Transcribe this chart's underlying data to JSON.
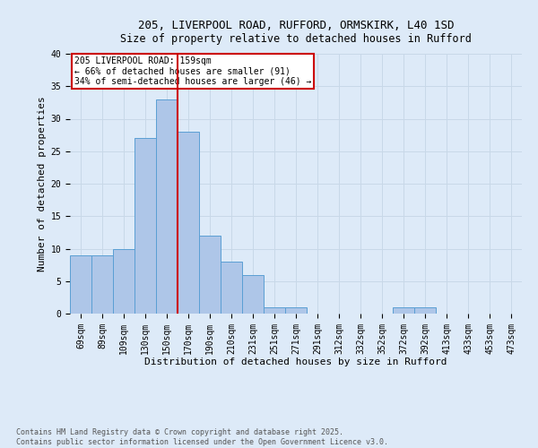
{
  "title_line1": "205, LIVERPOOL ROAD, RUFFORD, ORMSKIRK, L40 1SD",
  "title_line2": "Size of property relative to detached houses in Rufford",
  "xlabel": "Distribution of detached houses by size in Rufford",
  "ylabel": "Number of detached properties",
  "bin_labels": [
    "69sqm",
    "89sqm",
    "109sqm",
    "130sqm",
    "150sqm",
    "170sqm",
    "190sqm",
    "210sqm",
    "231sqm",
    "251sqm",
    "271sqm",
    "291sqm",
    "312sqm",
    "332sqm",
    "352sqm",
    "372sqm",
    "392sqm",
    "413sqm",
    "433sqm",
    "453sqm",
    "473sqm"
  ],
  "values": [
    9,
    9,
    10,
    27,
    33,
    28,
    12,
    8,
    6,
    1,
    1,
    0,
    0,
    0,
    0,
    1,
    1,
    0,
    0,
    0,
    0
  ],
  "bar_color": "#aec6e8",
  "bar_edge_color": "#5a9fd4",
  "grid_color": "#c8d8e8",
  "background_color": "#ddeaf8",
  "red_line_x": 4.5,
  "red_line_color": "#cc0000",
  "annotation_text": "205 LIVERPOOL ROAD: 159sqm\n← 66% of detached houses are smaller (91)\n34% of semi-detached houses are larger (46) →",
  "annotation_box_color": "#ffffff",
  "annotation_border_color": "#cc0000",
  "footnote": "Contains HM Land Registry data © Crown copyright and database right 2025.\nContains public sector information licensed under the Open Government Licence v3.0.",
  "ylim": [
    0,
    40
  ],
  "yticks": [
    0,
    5,
    10,
    15,
    20,
    25,
    30,
    35,
    40
  ],
  "title1_fontsize": 9,
  "title2_fontsize": 8.5,
  "xlabel_fontsize": 8,
  "ylabel_fontsize": 8,
  "tick_fontsize": 7,
  "annotation_fontsize": 7,
  "footnote_fontsize": 6
}
